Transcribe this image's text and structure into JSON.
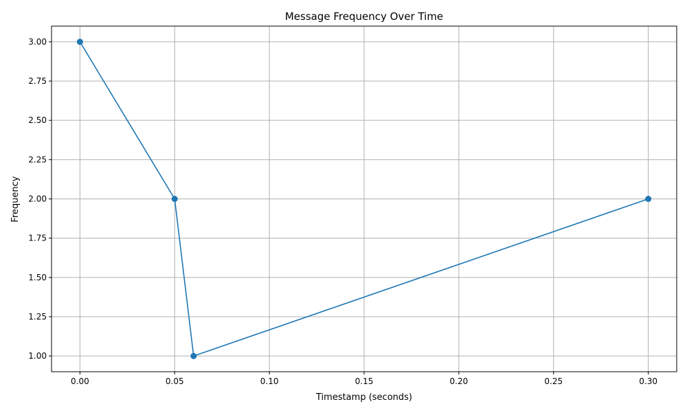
{
  "chart_data": {
    "type": "line",
    "title": "Message Frequency Over Time",
    "xlabel": "Timestamp (seconds)",
    "ylabel": "Frequency",
    "xlim": [
      -0.015,
      0.315
    ],
    "ylim": [
      0.9,
      3.1
    ],
    "xticks": [
      0.0,
      0.05,
      0.1,
      0.15,
      0.2,
      0.25,
      0.3
    ],
    "xtick_labels": [
      "0.00",
      "0.05",
      "0.10",
      "0.15",
      "0.20",
      "0.25",
      "0.30"
    ],
    "yticks": [
      1.0,
      1.25,
      1.5,
      1.75,
      2.0,
      2.25,
      2.5,
      2.75,
      3.0
    ],
    "ytick_labels": [
      "1.00",
      "1.25",
      "1.50",
      "1.75",
      "2.00",
      "2.25",
      "2.50",
      "2.75",
      "3.00"
    ],
    "grid": true,
    "series": [
      {
        "x": [
          0.0,
          0.05,
          0.06,
          0.3
        ],
        "y": [
          3,
          2,
          1,
          2
        ],
        "color": "#1f77b4",
        "marker": "circle"
      }
    ]
  }
}
